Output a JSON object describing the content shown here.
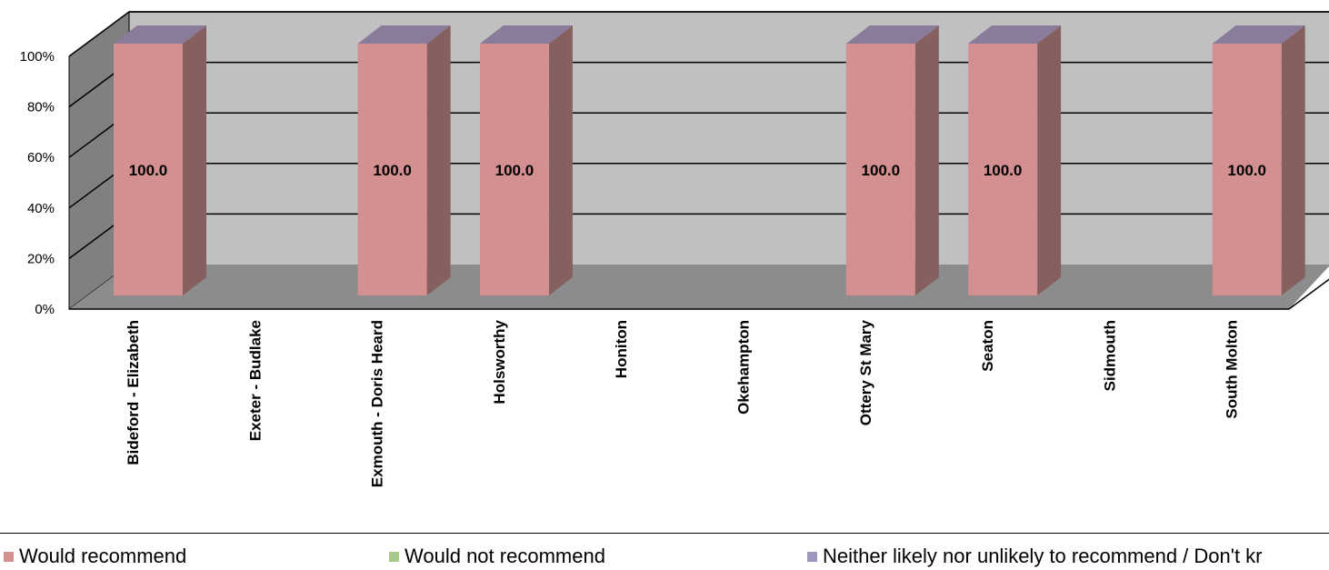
{
  "chart_data": {
    "type": "bar",
    "style": "3d-column",
    "categories": [
      "Bideford - Elizabeth",
      "Exeter - Budlake",
      "Exmouth - Doris Heard",
      "Holsworthy",
      "Honiton",
      "Okehampton",
      "Ottery St Mary",
      "Seaton",
      "Sidmouth",
      "South Molton"
    ],
    "series": [
      {
        "name": "Would recommend",
        "color": "#d49090",
        "values": [
          100,
          null,
          100,
          100,
          null,
          null,
          100,
          100,
          null,
          100
        ]
      },
      {
        "name": "Would not recommend",
        "color": "#a6c98a",
        "values": [
          null,
          null,
          null,
          null,
          null,
          null,
          null,
          null,
          null,
          null
        ]
      },
      {
        "name": "Neither likely nor unlikely to recommend / Don't kr",
        "color": "#9e96be",
        "values": [
          null,
          null,
          null,
          null,
          null,
          null,
          null,
          null,
          null,
          null
        ]
      }
    ],
    "data_labels": [
      "100.0",
      "",
      "100.0",
      "100.0",
      "",
      "",
      "100.0",
      "100.0",
      "",
      "100.0"
    ],
    "yticks": [
      "0%",
      "20%",
      "40%",
      "60%",
      "80%",
      "100%"
    ],
    "ylim": [
      0,
      100
    ],
    "grid": true,
    "legend_position": "bottom"
  }
}
